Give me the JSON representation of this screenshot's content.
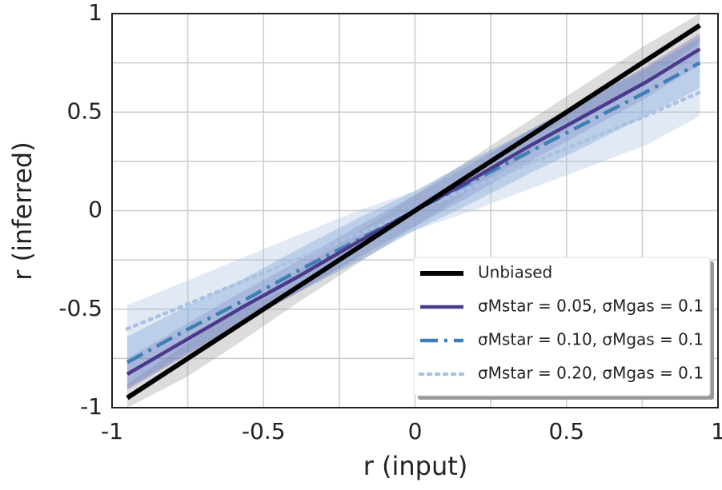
{
  "chart_data": {
    "type": "line",
    "xlabel": "r (input)",
    "ylabel": "r (inferred)",
    "xlim": [
      -1,
      1
    ],
    "ylim": [
      -1,
      1
    ],
    "xticks": [
      -1,
      -0.5,
      0,
      0.5,
      1
    ],
    "yticks": [
      -1,
      -0.5,
      0,
      0.5,
      1
    ],
    "minor_ticks": [
      -0.75,
      -0.25,
      0.25,
      0.75
    ],
    "grid": true,
    "legend": "lower right",
    "x": [
      -0.95,
      -0.76,
      -0.57,
      -0.38,
      -0.19,
      0,
      0.19,
      0.38,
      0.57,
      0.76,
      0.94
    ],
    "series": [
      {
        "name": "Unbiased",
        "color": "#000000",
        "band_color": "#9a9a9a",
        "dash": "solid",
        "values": [
          -0.95,
          -0.76,
          -0.57,
          -0.38,
          -0.19,
          0,
          0.19,
          0.38,
          0.57,
          0.76,
          0.94
        ],
        "lower": [
          -1.0,
          -0.85,
          -0.66,
          -0.46,
          -0.27,
          -0.08,
          0.11,
          0.29,
          0.48,
          0.66,
          0.85
        ],
        "upper": [
          -0.88,
          -0.68,
          -0.49,
          -0.3,
          -0.11,
          0.08,
          0.27,
          0.46,
          0.65,
          0.84,
          1.0
        ]
      },
      {
        "name": "σMstar = 0.05, σMgas = 0.1",
        "color": "#4b3a8c",
        "band_color": "#7a64b0",
        "dash": "solid",
        "values": [
          -0.83,
          -0.66,
          -0.49,
          -0.33,
          -0.16,
          0,
          0.16,
          0.33,
          0.49,
          0.65,
          0.82
        ],
        "lower": [
          -0.91,
          -0.74,
          -0.57,
          -0.41,
          -0.24,
          -0.08,
          0.08,
          0.25,
          0.41,
          0.57,
          0.74
        ],
        "upper": [
          -0.75,
          -0.58,
          -0.41,
          -0.25,
          -0.08,
          0.08,
          0.24,
          0.41,
          0.57,
          0.73,
          0.9
        ]
      },
      {
        "name": "σMstar = 0.10, σMgas = 0.1",
        "color": "#3f7fb5",
        "band_color": "#5b8fc8",
        "dash": "dashdot",
        "values": [
          -0.77,
          -0.61,
          -0.46,
          -0.3,
          -0.15,
          0,
          0.15,
          0.3,
          0.45,
          0.6,
          0.75
        ],
        "lower": [
          -0.9,
          -0.73,
          -0.57,
          -0.41,
          -0.26,
          -0.1,
          0.04,
          0.19,
          0.33,
          0.48,
          0.62
        ],
        "upper": [
          -0.64,
          -0.49,
          -0.35,
          -0.19,
          -0.04,
          0.1,
          0.26,
          0.41,
          0.57,
          0.72,
          0.88
        ]
      },
      {
        "name": "σMstar = 0.20, σMgas = 0.1",
        "color": "#a9c1e3",
        "band_color": "#a9c1e3",
        "dash": "dotted",
        "values": [
          -0.6,
          -0.48,
          -0.36,
          -0.24,
          -0.12,
          0,
          0.12,
          0.24,
          0.36,
          0.48,
          0.6
        ],
        "lower": [
          -0.78,
          -0.64,
          -0.5,
          -0.37,
          -0.23,
          -0.1,
          0.0,
          0.11,
          0.22,
          0.33,
          0.48
        ],
        "upper": [
          -0.48,
          -0.36,
          -0.24,
          -0.12,
          0.0,
          0.1,
          0.24,
          0.37,
          0.5,
          0.64,
          0.78
        ]
      }
    ]
  }
}
